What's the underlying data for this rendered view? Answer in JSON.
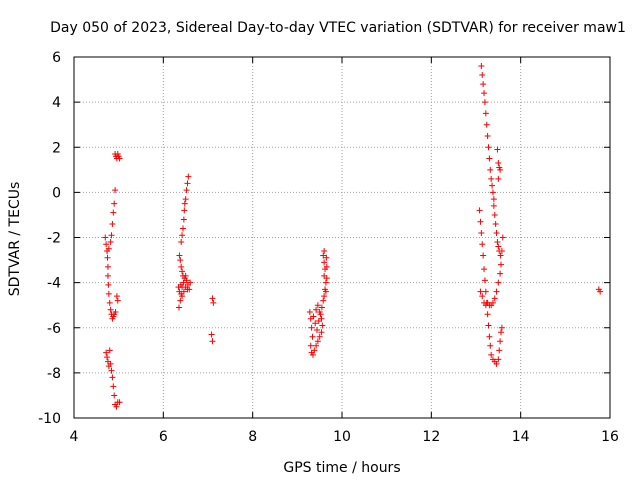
{
  "chart_data": {
    "type": "scatter",
    "title": "Day 050 of 2023, Sidereal Day-to-day VTEC variation (SDTVAR) for receiver maw1",
    "xlabel": "GPS time / hours",
    "ylabel": "SDTVAR / TECUs",
    "xlim": [
      4,
      16
    ],
    "ylim": [
      -10,
      6
    ],
    "xticks": [
      4,
      6,
      8,
      10,
      12,
      14,
      16
    ],
    "yticks": [
      -10,
      -8,
      -6,
      -4,
      -2,
      0,
      2,
      4,
      6
    ],
    "grid": true,
    "marker": "+",
    "series": [
      {
        "name": "SDTVAR",
        "color": "#ff0000",
        "points": [
          [
            4.7,
            -2.0
          ],
          [
            4.72,
            -2.3
          ],
          [
            4.74,
            -2.6
          ],
          [
            4.75,
            -2.9
          ],
          [
            4.76,
            -3.3
          ],
          [
            4.76,
            -3.7
          ],
          [
            4.77,
            -4.1
          ],
          [
            4.78,
            -4.5
          ],
          [
            4.8,
            -4.9
          ],
          [
            4.82,
            -5.2
          ],
          [
            4.84,
            -5.4
          ],
          [
            4.86,
            -5.6
          ],
          [
            4.88,
            -5.5
          ],
          [
            4.9,
            -5.4
          ],
          [
            4.93,
            -5.3
          ],
          [
            4.74,
            -2.6
          ],
          [
            4.78,
            -2.5
          ],
          [
            4.82,
            -2.2
          ],
          [
            4.84,
            -1.9
          ],
          [
            4.86,
            -1.4
          ],
          [
            4.88,
            -0.9
          ],
          [
            4.9,
            -0.5
          ],
          [
            4.92,
            0.1
          ],
          [
            4.72,
            -7.1
          ],
          [
            4.74,
            -7.3
          ],
          [
            4.76,
            -7.5
          ],
          [
            4.78,
            -7.7
          ],
          [
            4.8,
            -7.0
          ],
          [
            4.82,
            -7.6
          ],
          [
            4.84,
            -7.9
          ],
          [
            4.86,
            -8.2
          ],
          [
            4.88,
            -8.6
          ],
          [
            4.9,
            -9.0
          ],
          [
            4.92,
            -9.4
          ],
          [
            4.95,
            -9.5
          ],
          [
            4.98,
            -9.3
          ],
          [
            5.02,
            -9.3
          ],
          [
            4.92,
            1.7
          ],
          [
            4.94,
            1.6
          ],
          [
            4.96,
            1.5
          ],
          [
            4.98,
            1.7
          ],
          [
            5.0,
            1.6
          ],
          [
            5.02,
            1.5
          ],
          [
            4.96,
            -4.6
          ],
          [
            4.98,
            -4.8
          ],
          [
            6.35,
            -5.1
          ],
          [
            6.38,
            -4.8
          ],
          [
            6.4,
            -4.5
          ],
          [
            6.42,
            -4.2
          ],
          [
            6.45,
            -4.0
          ],
          [
            6.48,
            -3.8
          ],
          [
            6.5,
            -3.7
          ],
          [
            6.52,
            -3.9
          ],
          [
            6.55,
            -4.1
          ],
          [
            6.58,
            -4.3
          ],
          [
            6.6,
            -4.0
          ],
          [
            6.36,
            -2.8
          ],
          [
            6.38,
            -3.0
          ],
          [
            6.4,
            -3.3
          ],
          [
            6.42,
            -3.5
          ],
          [
            6.44,
            -3.7
          ],
          [
            6.4,
            -2.2
          ],
          [
            6.42,
            -1.9
          ],
          [
            6.44,
            -1.6
          ],
          [
            6.46,
            -1.2
          ],
          [
            6.47,
            -0.8
          ],
          [
            6.48,
            -0.5
          ],
          [
            6.5,
            -0.3
          ],
          [
            6.52,
            0.1
          ],
          [
            6.54,
            0.4
          ],
          [
            6.56,
            0.7
          ],
          [
            6.34,
            -4.2
          ],
          [
            6.36,
            -4.4
          ],
          [
            6.39,
            -4.1
          ],
          [
            6.42,
            -4.6
          ],
          [
            6.46,
            -4.4
          ],
          [
            6.5,
            -4.2
          ],
          [
            6.54,
            -4.3
          ],
          [
            7.1,
            -4.7
          ],
          [
            7.12,
            -4.9
          ],
          [
            7.08,
            -6.3
          ],
          [
            7.1,
            -6.6
          ],
          [
            9.28,
            -5.3
          ],
          [
            9.3,
            -5.6
          ],
          [
            9.32,
            -6.0
          ],
          [
            9.34,
            -6.4
          ],
          [
            9.3,
            -6.8
          ],
          [
            9.32,
            -7.1
          ],
          [
            9.35,
            -7.2
          ],
          [
            9.38,
            -7.0
          ],
          [
            9.42,
            -6.8
          ],
          [
            9.46,
            -6.6
          ],
          [
            9.5,
            -6.4
          ],
          [
            9.54,
            -6.2
          ],
          [
            9.56,
            -5.9
          ],
          [
            9.36,
            -5.5
          ],
          [
            9.4,
            -5.8
          ],
          [
            9.44,
            -6.1
          ],
          [
            9.48,
            -5.7
          ],
          [
            9.52,
            -5.4
          ],
          [
            9.55,
            -5.1
          ],
          [
            9.58,
            -4.8
          ],
          [
            9.6,
            -4.6
          ],
          [
            9.62,
            -4.3
          ],
          [
            9.64,
            -4.0
          ],
          [
            9.6,
            -3.7
          ],
          [
            9.62,
            -3.4
          ],
          [
            9.6,
            -3.1
          ],
          [
            9.58,
            -2.8
          ],
          [
            9.6,
            -2.6
          ],
          [
            9.65,
            -2.9
          ],
          [
            9.66,
            -3.3
          ],
          [
            9.66,
            -3.8
          ],
          [
            9.64,
            -4.4
          ],
          [
            9.42,
            -5.2
          ],
          [
            9.46,
            -5.0
          ],
          [
            9.5,
            -5.3
          ],
          [
            9.54,
            -5.6
          ],
          [
            13.12,
            5.6
          ],
          [
            13.14,
            5.2
          ],
          [
            13.16,
            4.8
          ],
          [
            13.18,
            4.4
          ],
          [
            13.2,
            4.0
          ],
          [
            13.22,
            3.5
          ],
          [
            13.24,
            3.0
          ],
          [
            13.26,
            2.5
          ],
          [
            13.28,
            2.0
          ],
          [
            13.3,
            1.5
          ],
          [
            13.32,
            1.0
          ],
          [
            13.34,
            0.6
          ],
          [
            13.36,
            0.3
          ],
          [
            13.38,
            0.0
          ],
          [
            13.4,
            -0.3
          ],
          [
            13.4,
            -0.6
          ],
          [
            13.42,
            -1.0
          ],
          [
            13.44,
            -1.4
          ],
          [
            13.46,
            -1.8
          ],
          [
            13.48,
            -2.2
          ],
          [
            13.5,
            -2.4
          ],
          [
            13.52,
            -2.6
          ],
          [
            13.55,
            -2.8
          ],
          [
            13.58,
            -2.6
          ],
          [
            13.6,
            -2.0
          ],
          [
            13.08,
            -0.8
          ],
          [
            13.1,
            -1.3
          ],
          [
            13.12,
            -1.8
          ],
          [
            13.14,
            -2.3
          ],
          [
            13.16,
            -2.8
          ],
          [
            13.18,
            -3.4
          ],
          [
            13.2,
            -3.9
          ],
          [
            13.22,
            -4.4
          ],
          [
            13.24,
            -4.9
          ],
          [
            13.26,
            -5.4
          ],
          [
            13.28,
            -5.9
          ],
          [
            13.3,
            -6.4
          ],
          [
            13.32,
            -6.8
          ],
          [
            13.34,
            -7.2
          ],
          [
            13.38,
            -7.4
          ],
          [
            13.42,
            -7.5
          ],
          [
            13.46,
            -7.6
          ],
          [
            13.5,
            -7.4
          ],
          [
            13.52,
            -7.0
          ],
          [
            13.54,
            -6.6
          ],
          [
            13.56,
            -6.2
          ],
          [
            13.58,
            -6.0
          ],
          [
            13.1,
            -4.4
          ],
          [
            13.14,
            -4.6
          ],
          [
            13.18,
            -4.9
          ],
          [
            13.22,
            -5.0
          ],
          [
            13.26,
            -4.9
          ],
          [
            13.3,
            -5.0
          ],
          [
            13.34,
            -5.0
          ],
          [
            13.38,
            -4.9
          ],
          [
            13.42,
            -4.7
          ],
          [
            13.46,
            -4.4
          ],
          [
            13.5,
            -4.0
          ],
          [
            13.54,
            -3.6
          ],
          [
            13.56,
            -3.2
          ],
          [
            13.48,
            1.9
          ],
          [
            13.5,
            1.3
          ],
          [
            13.52,
            1.1
          ],
          [
            13.54,
            1.0
          ],
          [
            13.5,
            0.6
          ],
          [
            15.75,
            -4.3
          ],
          [
            15.78,
            -4.4
          ]
        ]
      }
    ]
  }
}
